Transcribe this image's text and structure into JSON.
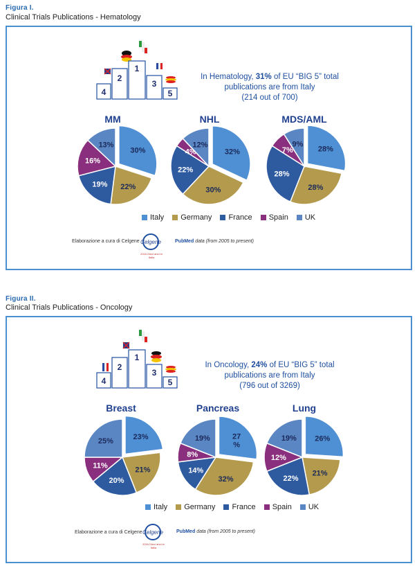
{
  "figures": [
    {
      "label": "Figura I.",
      "subtitle": "Clinical Trials Publications - Hematology",
      "message": {
        "pre": "In Hematology, ",
        "bold": "31%",
        "post": " of EU “BIG 5” total",
        "line2": "publications are from Italy",
        "line3": "(214 out of 700)"
      },
      "podium": [
        "1",
        "2",
        "3",
        "4",
        "5"
      ],
      "legend": [
        "Italy",
        "Germany",
        "France",
        "Spain",
        "UK"
      ],
      "credit": "Elaborazione a cura di Celgene",
      "logo": "Celgene",
      "logo_sub": "2016 Dieci anni in Italia",
      "pubmed": "PubMed",
      "pubmed_note": "data (from 2005 to present)"
    },
    {
      "label": "Figura II.",
      "subtitle": "Clinical Trials Publications - Oncology",
      "message": {
        "pre": "In Oncology, ",
        "bold": "24%",
        "post": " of EU “BIG 5” total",
        "line2": "publications are from Italy",
        "line3": "(796 out of 3269)"
      },
      "podium": [
        "1",
        "2",
        "3",
        "4",
        "5"
      ],
      "legend": [
        "Italy",
        "Germany",
        "France",
        "Spain",
        "UK"
      ],
      "credit": "Elaborazione a cura di Celgene",
      "logo": "Celgene",
      "logo_sub": "2016 Dieci anni in Italia",
      "pubmed": "PubMed",
      "pubmed_note": "data (from 2005 to present)"
    }
  ],
  "colors": {
    "Italy": "#4f8fd3",
    "Germany": "#b39a4c",
    "France": "#2e5aa0",
    "Spain": "#8a2f7e",
    "UK": "#5b86c4",
    "accent": "#1f4fa0"
  },
  "chart_data": [
    {
      "type": "pie",
      "title": "MM",
      "labels": [
        "Italy",
        "Germany",
        "France",
        "Spain",
        "UK"
      ],
      "values": [
        30,
        22,
        19,
        16,
        13
      ],
      "value_labels": [
        "30%",
        "22%",
        "19%",
        "16%",
        "13%"
      ]
    },
    {
      "type": "pie",
      "title": "NHL",
      "labels": [
        "Italy",
        "Germany",
        "France",
        "Spain",
        "UK"
      ],
      "values": [
        32,
        30,
        22,
        4,
        12
      ],
      "value_labels": [
        "32%",
        "30%",
        "22%",
        "4%",
        "12%"
      ]
    },
    {
      "type": "pie",
      "title": "MDS/AML",
      "labels": [
        "Italy",
        "Germany",
        "France",
        "Spain",
        "UK"
      ],
      "values": [
        28,
        28,
        28,
        7,
        9
      ],
      "value_labels": [
        "28%",
        "28%",
        "28%",
        "7%",
        "9%"
      ]
    },
    {
      "type": "pie",
      "title": "Breast",
      "labels": [
        "Italy",
        "Germany",
        "France",
        "Spain",
        "UK"
      ],
      "values": [
        23,
        21,
        20,
        11,
        25
      ],
      "value_labels": [
        "23%",
        "21%",
        "20%",
        "11%",
        "25%"
      ]
    },
    {
      "type": "pie",
      "title": "Pancreas",
      "labels": [
        "Italy",
        "Germany",
        "France",
        "Spain",
        "UK"
      ],
      "values": [
        27,
        32,
        14,
        8,
        19
      ],
      "value_labels": [
        "27\n%",
        "32%",
        "14%",
        "8%",
        "19%"
      ]
    },
    {
      "type": "pie",
      "title": "Lung",
      "labels": [
        "Italy",
        "Germany",
        "France",
        "Spain",
        "UK"
      ],
      "values": [
        26,
        21,
        22,
        12,
        19
      ],
      "value_labels": [
        "26%",
        "21%",
        "22%",
        "12%",
        "19%"
      ]
    }
  ]
}
